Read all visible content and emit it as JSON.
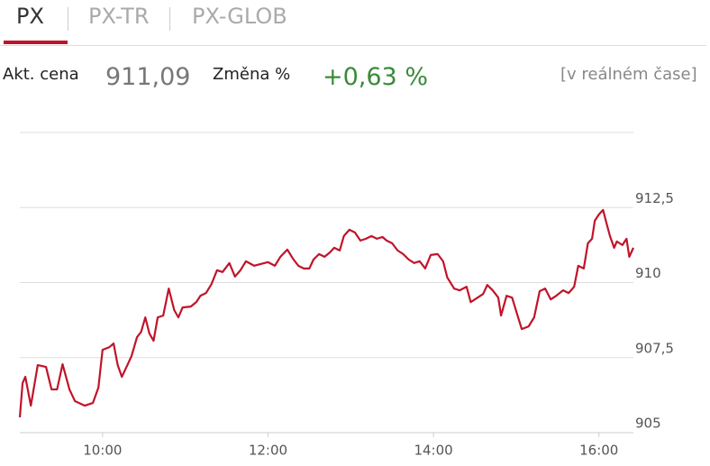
{
  "tabs": [
    "PX",
    "PX-TR",
    "PX-GLOB"
  ],
  "info": {
    "price_label": "Akt. cena",
    "price": "911,09",
    "change_label": "Změna %",
    "change": "+0,63 %",
    "mode": "[v reálném čase]"
  },
  "chart_data": {
    "type": "line",
    "xlim": [
      540,
      985
    ],
    "xticks": [
      {
        "value": 600,
        "label": "10:00"
      },
      {
        "value": 720,
        "label": "12:00"
      },
      {
        "value": 840,
        "label": "14:00"
      },
      {
        "value": 960,
        "label": "16:00"
      }
    ],
    "ylim": [
      905,
      915
    ],
    "yticks": [
      905,
      {
        "value": 907.5,
        "label": "907,5"
      },
      910,
      {
        "value": 912.5,
        "label": "912,5"
      }
    ],
    "grid": true,
    "x": [
      540,
      542,
      544,
      548,
      553,
      559,
      563,
      567,
      571,
      576,
      580,
      587,
      593,
      597,
      600,
      605,
      608,
      611,
      614,
      618,
      621,
      625,
      628,
      631,
      634,
      637,
      640,
      644,
      648,
      652,
      655,
      658,
      664,
      668,
      671,
      675,
      679,
      683,
      687,
      692,
      696,
      700,
      704,
      710,
      715,
      720,
      725,
      729,
      734,
      738,
      742,
      746,
      750,
      753,
      757,
      761,
      765,
      768,
      772,
      775,
      779,
      783,
      787,
      791,
      795,
      799,
      803,
      806,
      810,
      814,
      818,
      822,
      826,
      830,
      834,
      838,
      843,
      847,
      850,
      855,
      859,
      864,
      867,
      872,
      876,
      879,
      883,
      887,
      889,
      893,
      897,
      900,
      904,
      909,
      913,
      917,
      921,
      925,
      929,
      934,
      938,
      942,
      945,
      949,
      952,
      955,
      957,
      960,
      963,
      965,
      968,
      971,
      973,
      977,
      980,
      982,
      985
    ],
    "series": [
      {
        "name": "PX",
        "color": "#c0142a",
        "values": [
          905.51,
          906.65,
          906.86,
          905.9,
          907.25,
          907.19,
          906.44,
          906.44,
          907.28,
          906.44,
          906.05,
          905.9,
          905.99,
          906.5,
          907.76,
          907.85,
          907.97,
          907.25,
          906.86,
          907.25,
          907.55,
          908.18,
          908.36,
          908.84,
          908.3,
          908.06,
          908.84,
          908.9,
          909.8,
          909.08,
          908.84,
          909.17,
          909.2,
          909.35,
          909.56,
          909.65,
          909.95,
          910.41,
          910.35,
          910.65,
          910.2,
          910.41,
          910.71,
          910.56,
          910.62,
          910.68,
          910.56,
          910.86,
          911.1,
          910.8,
          910.56,
          910.47,
          910.47,
          910.77,
          910.95,
          910.86,
          911.01,
          911.16,
          911.07,
          911.55,
          911.76,
          911.67,
          911.4,
          911.46,
          911.55,
          911.46,
          911.52,
          911.4,
          911.31,
          911.07,
          910.95,
          910.77,
          910.65,
          910.71,
          910.47,
          910.92,
          910.95,
          910.71,
          910.17,
          909.8,
          909.74,
          909.86,
          909.35,
          909.5,
          909.62,
          909.92,
          909.74,
          909.5,
          908.9,
          909.56,
          909.5,
          909.05,
          908.45,
          908.54,
          908.84,
          909.71,
          909.8,
          909.44,
          909.56,
          909.74,
          909.65,
          909.86,
          910.56,
          910.47,
          911.31,
          911.46,
          912.06,
          912.27,
          912.42,
          912.06,
          911.55,
          911.16,
          911.37,
          911.25,
          911.46,
          910.86,
          911.16
        ]
      }
    ]
  }
}
